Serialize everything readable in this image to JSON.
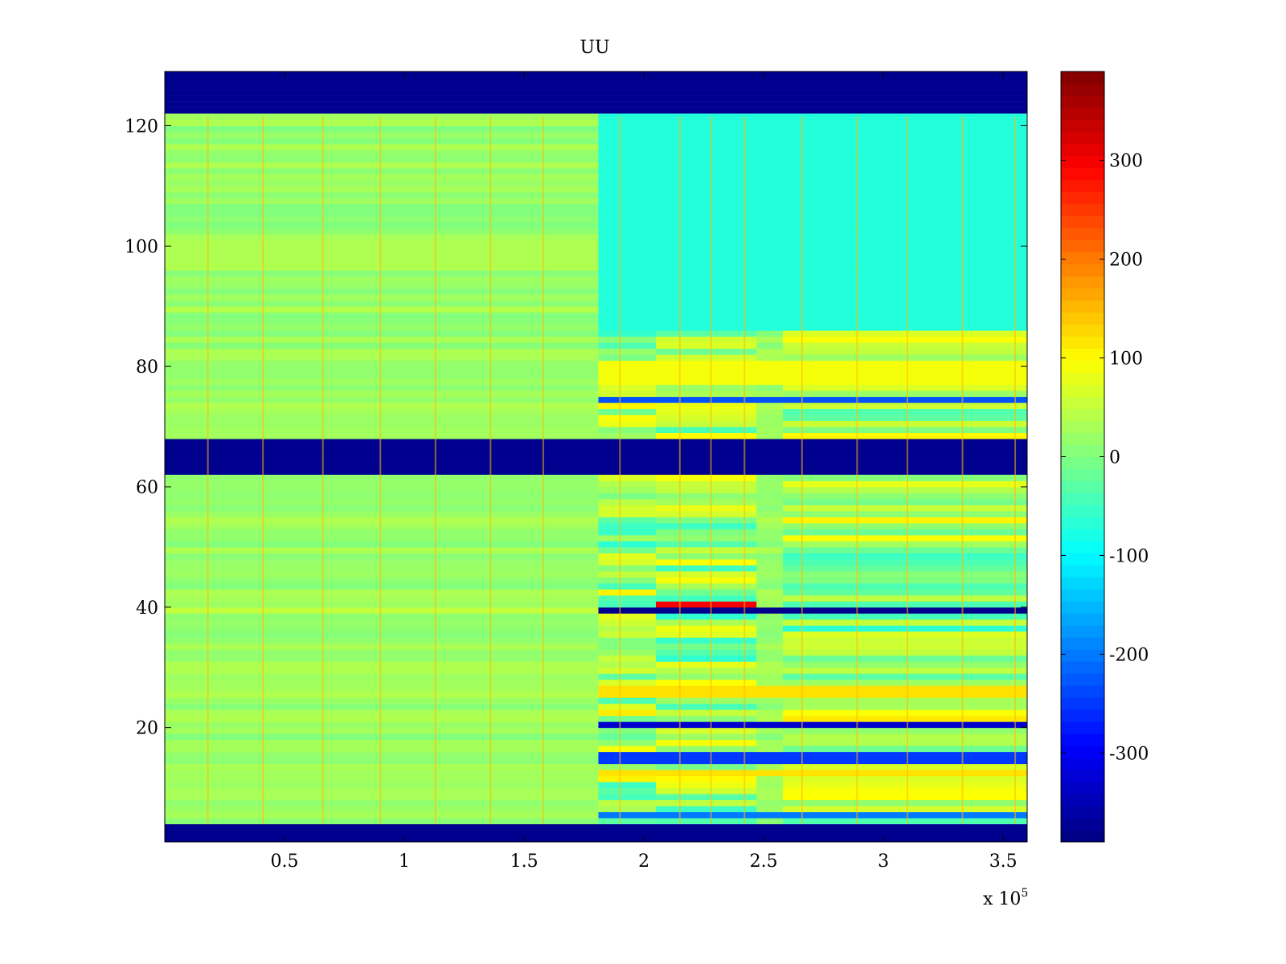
{
  "chart_data": {
    "type": "heatmap",
    "title": "UU",
    "xlabel": "",
    "ylabel": "",
    "x_multiplier_label": {
      "base": "x 10",
      "exponent": "5"
    },
    "xlim": [
      0,
      3.6
    ],
    "ylim": [
      1,
      129
    ],
    "x_ticks": [
      0.5,
      1,
      1.5,
      2,
      2.5,
      3,
      3.5
    ],
    "x_tick_labels": [
      "0.5",
      "1",
      "1.5",
      "2",
      "2.5",
      "3",
      "3.5"
    ],
    "y_ticks": [
      20,
      40,
      60,
      80,
      100,
      120
    ],
    "y_tick_labels": [
      "20",
      "40",
      "60",
      "80",
      "100",
      "120"
    ],
    "colormap": "jet",
    "clim": [
      -390,
      390
    ],
    "colorbar_ticks": [
      300,
      200,
      100,
      0,
      -100,
      -200,
      -300
    ],
    "colorbar_tick_labels": [
      "300",
      "200",
      "100",
      "0",
      "-100",
      "-200",
      "-300"
    ],
    "masked_rows": [
      [
        1,
        4
      ],
      [
        62,
        68
      ],
      [
        122,
        129
      ]
    ],
    "regime_change_x": 1.81,
    "segment_x_ranges": [
      [
        0,
        1.81
      ],
      [
        1.81,
        2.05
      ],
      [
        2.05,
        2.47
      ],
      [
        2.47,
        2.58
      ],
      [
        2.58,
        3.6
      ]
    ],
    "periodic_spike_x": [
      0.18,
      0.41,
      0.66,
      0.9,
      1.13,
      1.36,
      1.58,
      1.9,
      2.15,
      2.28,
      2.42,
      2.66,
      2.89,
      3.1,
      3.33,
      3.55
    ],
    "row_features": [
      {
        "rows": [
          39,
          39
        ],
        "after_value": -380,
        "before_value": 50,
        "label": "strong negative band"
      },
      {
        "rows": [
          40,
          40
        ],
        "segment_value": 300,
        "segment_x": [
          2.05,
          2.47
        ],
        "label": "strong positive band"
      },
      {
        "rows": [
          20,
          20
        ],
        "after_value": -330,
        "label": "negative band"
      },
      {
        "rows": [
          14,
          15
        ],
        "after_value": -250,
        "label": "negative band"
      },
      {
        "rows": [
          74,
          74
        ],
        "after_value": -230,
        "label": "negative band"
      },
      {
        "rows": [
          5,
          5
        ],
        "after_value": -200,
        "label": "negative band"
      },
      {
        "rows": [
          12,
          12
        ],
        "after_value": 120,
        "label": "positive band"
      },
      {
        "rows": [
          25,
          26
        ],
        "after_value": 120,
        "label": "positive band"
      },
      {
        "rows": [
          77,
          80
        ],
        "after_value": 90,
        "label": "positive band"
      },
      {
        "rows": [
          86,
          122
        ],
        "after_value": -70,
        "label": "cooler upper region"
      }
    ],
    "background_value": 20
  },
  "colors": {
    "background": "#ffffff",
    "masked": "#00008f",
    "axis": "#000000"
  }
}
